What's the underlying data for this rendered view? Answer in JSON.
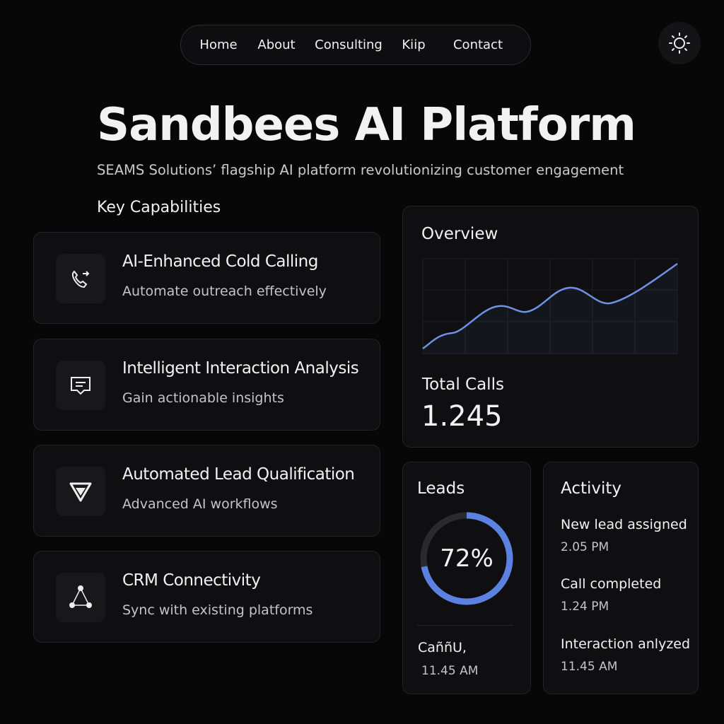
{
  "nav": {
    "items": [
      "Home",
      "About",
      "Consulting",
      "Kiip",
      "Contact"
    ]
  },
  "header": {
    "title": "Sandbees AI Platform",
    "subtitle": "SEAMS Solutions’ flagship AI platform revolutionizing customer engagement"
  },
  "capabilities": {
    "heading": "Key Capabilities",
    "items": [
      {
        "title": "AI-Enhanced Cold Calling",
        "description": "Automate outreach effectively"
      },
      {
        "title": "Intelligent Interaction Analysis",
        "description": "Gain actionable insights"
      },
      {
        "title": "Automated Lead Qualification",
        "description": "Advanced AI workflows"
      },
      {
        "title": "CRM Connectivity",
        "description": "Sync with existing platforms"
      }
    ]
  },
  "overview": {
    "title": "Overview",
    "metric_label": "Total Calls",
    "metric_value": "1.245"
  },
  "leads": {
    "title": "Leads",
    "value": 72,
    "value_label": "72%",
    "item": {
      "label": "CaññU,",
      "time": "11.45 AM"
    }
  },
  "activity": {
    "title": "Activity",
    "items": [
      {
        "label": "New lead assigned",
        "time": "2.05 PM"
      },
      {
        "label": "Call completed",
        "time": "1.24 PM"
      },
      {
        "label": "Interaction anlyzed",
        "time": "11.45 AM"
      }
    ]
  }
}
